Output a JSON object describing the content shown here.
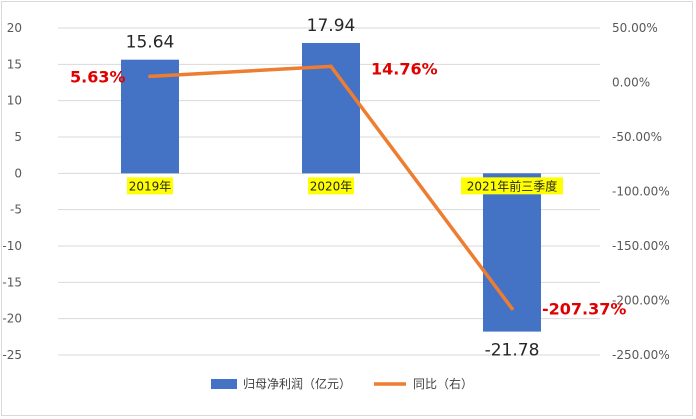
{
  "chart_data": {
    "type": "bar",
    "categories": [
      "2019年",
      "2020年",
      "2021年前三季度"
    ],
    "series": [
      {
        "name": "归母净利润（亿元）",
        "type": "bar",
        "axis": "left",
        "values": [
          15.64,
          17.94,
          -21.78
        ],
        "labels": [
          "15.64",
          "17.94",
          "-21.78"
        ],
        "color": "#4472c4"
      },
      {
        "name": "同比（右）",
        "type": "line",
        "axis": "right",
        "values": [
          5.63,
          14.76,
          -207.37
        ],
        "labels": [
          "5.63%",
          "14.76%",
          "-207.37%"
        ],
        "color": "#ed7d31"
      }
    ],
    "y_left": {
      "min": -25,
      "max": 20,
      "step": 5,
      "ticks": [
        "20",
        "15",
        "10",
        "5",
        "0",
        "-5",
        "-10",
        "-15",
        "-20",
        "-25"
      ]
    },
    "y_right": {
      "min": -250,
      "max": 50,
      "step": 50,
      "ticks": [
        "50.00%",
        "0.00%",
        "-50.00%",
        "-100.00%",
        "-150.00%",
        "-200.00%",
        "-250.00%"
      ]
    },
    "category_highlight_color": "#ffff00",
    "grid": true,
    "legend": "bottom"
  }
}
